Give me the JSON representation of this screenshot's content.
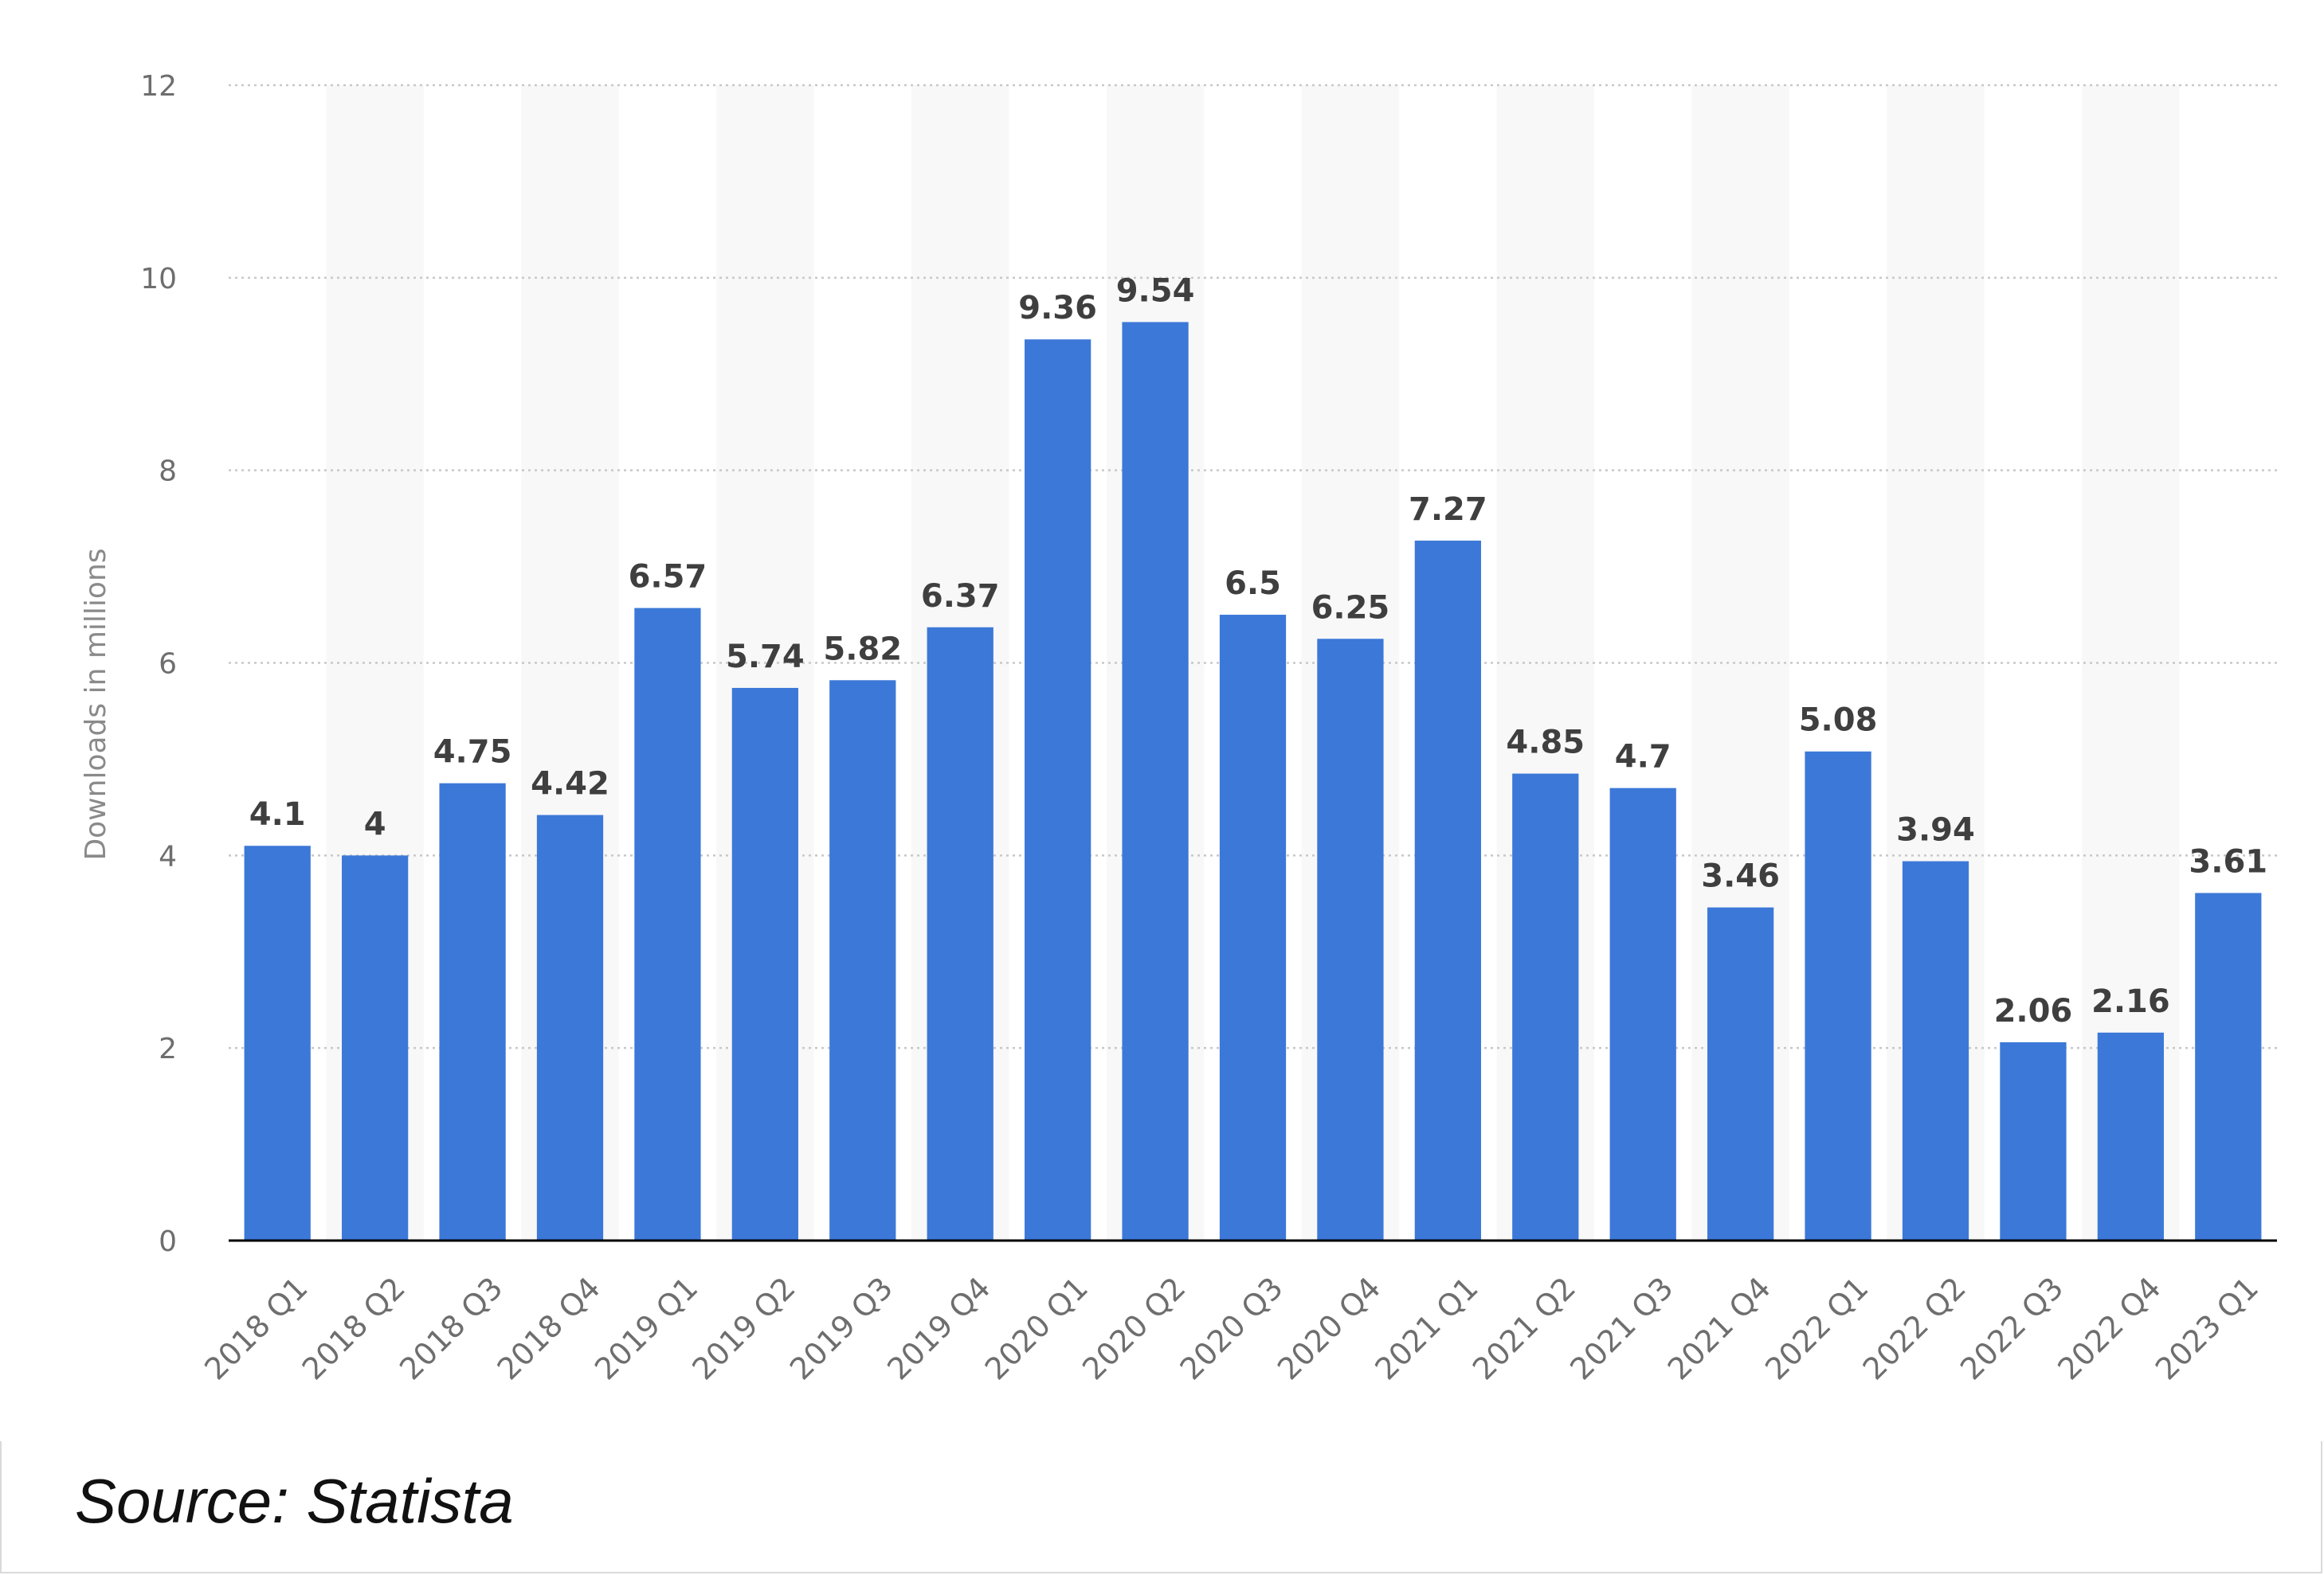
{
  "chart_data": {
    "type": "bar",
    "categories": [
      "2018 Q1",
      "2018 Q2",
      "2018 Q3",
      "2018 Q4",
      "2019 Q1",
      "2019 Q2",
      "2019 Q3",
      "2019 Q4",
      "2020 Q1",
      "2020 Q2",
      "2020 Q3",
      "2020 Q4",
      "2021 Q1",
      "2021 Q2",
      "2021 Q3",
      "2021 Q4",
      "2022 Q1",
      "2022 Q2",
      "2022 Q3",
      "2022 Q4",
      "2023 Q1"
    ],
    "values": [
      4.1,
      4,
      4.75,
      4.42,
      6.57,
      5.74,
      5.82,
      6.37,
      9.36,
      9.54,
      6.5,
      6.25,
      7.27,
      4.85,
      4.7,
      3.46,
      5.08,
      3.94,
      2.06,
      2.16,
      3.61
    ],
    "value_labels": [
      "4.1",
      "4",
      "4.75",
      "4.42",
      "6.57",
      "5.74",
      "5.82",
      "6.37",
      "9.36",
      "9.54",
      "6.5",
      "6.25",
      "7.27",
      "4.85",
      "4.7",
      "3.46",
      "5.08",
      "3.94",
      "2.06",
      "2.16",
      "3.61"
    ],
    "title": "",
    "xlabel": "",
    "ylabel": "Downloads in millions",
    "ylim": [
      0,
      12
    ],
    "yticks": [
      0,
      2,
      4,
      6,
      8,
      10,
      12
    ],
    "grid": true,
    "bar_color": "#3c78d8",
    "alt_band_color": "#f8f8f8",
    "gridline_color": "#c8c8c8",
    "axis_color": "#000000"
  },
  "footer": {
    "source": "Source: Statista"
  }
}
